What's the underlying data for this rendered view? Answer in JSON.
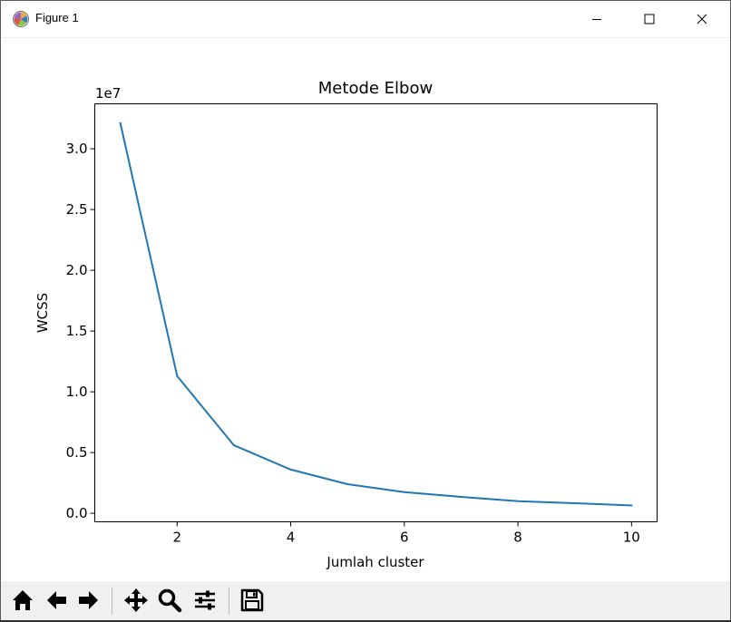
{
  "window": {
    "title": "Figure 1",
    "controls": {
      "minimize": "minimize-icon",
      "maximize": "maximize-icon",
      "close": "close-icon"
    }
  },
  "toolbar": {
    "buttons": [
      "home-icon",
      "back-arrow-icon",
      "forward-arrow-icon",
      "pan-icon",
      "zoom-icon",
      "configure-subplots-icon",
      "save-icon"
    ]
  },
  "colors": {
    "line": "#1f77b4",
    "toolbar_bg": "#f0f0f0",
    "axes": "#000000"
  },
  "chart_data": {
    "type": "line",
    "title": "Metode Elbow",
    "xlabel": "Jumlah cluster",
    "ylabel": "WCSS",
    "offset_text": "1e7",
    "x": [
      1,
      2,
      3,
      4,
      5,
      6,
      7,
      8,
      9,
      10
    ],
    "series": [
      {
        "values": [
          32100000,
          11300000,
          5600000,
          3600000,
          2400000,
          1750000,
          1350000,
          1000000,
          830000,
          650000
        ]
      }
    ],
    "xlim": [
      0.55,
      10.45
    ],
    "ylim": [
      -700000,
      33700000
    ],
    "xticks": [
      2,
      4,
      6,
      8,
      10
    ],
    "xtick_labels": [
      "2",
      "4",
      "6",
      "8",
      "10"
    ],
    "yticks": [
      0,
      5000000,
      10000000,
      15000000,
      20000000,
      25000000,
      30000000
    ],
    "ytick_labels": [
      "0.0",
      "0.5",
      "1.0",
      "1.5",
      "2.0",
      "2.5",
      "3.0"
    ],
    "grid": false,
    "legend": false
  }
}
